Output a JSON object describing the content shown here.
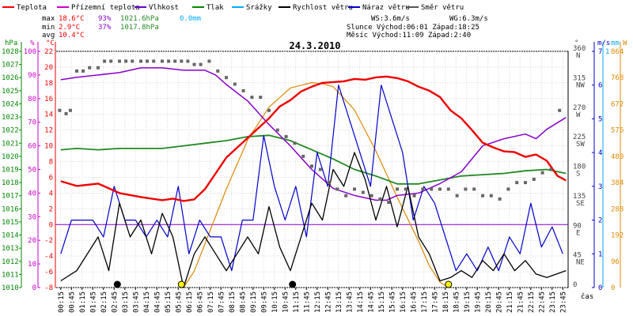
{
  "chart_data": {
    "type": "line",
    "title": "24.3.2010",
    "legend": [
      {
        "name": "Teplota",
        "color": "#ff0000"
      },
      {
        "name": "Přízemní teplota",
        "color": "#cc00cc"
      },
      {
        "name": "Vlhkost",
        "color": "#6600cc"
      },
      {
        "name": "Tlak",
        "color": "#008800"
      },
      {
        "name": "Srážky",
        "color": "#00aaff"
      },
      {
        "name": "Rychlost větru",
        "color": "#000000"
      },
      {
        "name": "Náraz větru",
        "color": "#0000cc"
      },
      {
        "name": "Směr větru",
        "color": "#555555"
      }
    ],
    "stats": {
      "max": {
        "label": "max",
        "temp": "18.6°C",
        "hum": "93%",
        "press": "1021.6hPa",
        "rain": "0.0mm"
      },
      "min": {
        "label": "min",
        "temp": "2.9°C",
        "hum": "37%",
        "press": "1017.8hPa"
      },
      "avg": {
        "label": "avg",
        "temp": "10.4°C"
      }
    },
    "info": {
      "ws": "WS:3.6m/s",
      "wg": "WG:6.3m/s",
      "sun": "Slunce Východ:06:01  Západ:18:25",
      "moon": "Měsíc  Východ:11:09  Západ:2:40"
    },
    "axes": {
      "hpa_title": "hPa",
      "pct_title": "%",
      "temp_title": "°C",
      "deg_title": "°",
      "ms_title": "m/s",
      "mm_title": "mm",
      "wm2_title": "W",
      "xlabel": "čas",
      "hpa_ticks": [
        "1028",
        "1027",
        "1026",
        "1025",
        "1024",
        "1023",
        "1022",
        "1021",
        "1020",
        "1019",
        "1018",
        "1017",
        "1016",
        "1015",
        "1014",
        "1013",
        "1012",
        "1011",
        "1010"
      ],
      "pct_ticks": [
        "100",
        "90",
        "80",
        "70",
        "60",
        "50",
        "40",
        "30",
        "20",
        "10",
        "0"
      ],
      "temp_ticks": [
        "22",
        "20",
        "18",
        "16",
        "14",
        "12",
        "10",
        "8",
        "6",
        "4",
        "2",
        "0",
        "-2",
        "-4",
        "-6",
        "-8"
      ],
      "dir_ticks": [
        {
          "deg": "360",
          "dir": "N"
        },
        {
          "deg": "315",
          "dir": "NW"
        },
        {
          "deg": "270",
          "dir": "W"
        },
        {
          "deg": "225",
          "dir": "SW"
        },
        {
          "deg": "180",
          "dir": "S"
        },
        {
          "deg": "135",
          "dir": "SE"
        },
        {
          "deg": "90",
          "dir": "E"
        },
        {
          "deg": "45",
          "dir": "NE"
        },
        {
          "deg": "0",
          "dir": ""
        }
      ],
      "ms_ticks": [
        "7",
        "6",
        "5",
        "4",
        "3",
        "2",
        "1",
        "0"
      ],
      "mm_top": "1",
      "wm2_ticks": [
        "864",
        "768",
        "672",
        "576",
        "480",
        "384",
        "288",
        "192",
        "96",
        "0"
      ],
      "x_ticks": [
        "00:15",
        "00:45",
        "01:15",
        "01:45",
        "02:15",
        "02:45",
        "03:15",
        "03:45",
        "04:15",
        "04:45",
        "05:15",
        "05:45",
        "06:15",
        "06:45",
        "07:15",
        "07:45",
        "08:15",
        "08:45",
        "09:15",
        "09:45",
        "10:15",
        "10:45",
        "11:15",
        "11:45",
        "12:15",
        "12:45",
        "13:15",
        "13:45",
        "14:15",
        "14:45",
        "15:15",
        "15:45",
        "16:15",
        "16:45",
        "17:15",
        "17:45",
        "18:15",
        "18:45",
        "19:15",
        "19:45",
        "20:15",
        "20:45",
        "21:15",
        "21:45",
        "22:15",
        "22:45",
        "23:15",
        "23:45"
      ]
    },
    "series": {
      "temperature": {
        "name": "Teplota",
        "unit": "°C",
        "x": [
          0.25,
          1,
          2,
          3,
          4,
          5,
          5.5,
          6,
          6.5,
          7,
          7.5,
          8,
          9,
          10,
          10.5,
          11,
          11.5,
          12,
          12.5,
          13,
          13.5,
          14,
          14.5,
          15,
          15.5,
          16,
          16.5,
          17,
          17.5,
          18,
          18.5,
          19,
          19.5,
          20,
          20.5,
          21,
          21.5,
          22,
          22.5,
          23,
          23.5,
          23.9
        ],
        "y": [
          5.5,
          4.9,
          5.2,
          4.0,
          3.5,
          3.1,
          3.3,
          3.0,
          3.2,
          4.5,
          6.5,
          8.5,
          11,
          13.5,
          15,
          15.8,
          16.9,
          17.5,
          18.0,
          18.1,
          18.2,
          18.5,
          18.4,
          18.7,
          18.8,
          18.6,
          18.2,
          17.5,
          17.0,
          16.2,
          14.5,
          13.5,
          12.0,
          10.4,
          9.8,
          9.3,
          9.2,
          8.6,
          8.9,
          8.1,
          6.2,
          5.6
        ]
      },
      "humidity": {
        "name": "Vlhkost",
        "unit": "%",
        "x": [
          0.25,
          1,
          2,
          3,
          4,
          5,
          6,
          7,
          7.5,
          8,
          9,
          10,
          11,
          12,
          13,
          14,
          15,
          15.5,
          16,
          17,
          18,
          19,
          20,
          21,
          22,
          22.5,
          23,
          23.9
        ],
        "y": [
          88,
          89,
          90,
          91,
          93,
          93,
          92,
          92,
          90,
          86,
          79,
          69,
          60,
          50,
          42,
          39,
          37,
          37,
          39,
          40,
          44,
          49,
          60,
          63,
          65,
          63,
          67,
          72
        ]
      },
      "pressure": {
        "name": "Tlak",
        "unit": "hPa",
        "x": [
          0.25,
          1,
          2,
          3,
          4,
          5,
          6,
          7,
          8,
          9,
          10,
          11,
          12,
          13,
          14,
          15,
          16,
          17,
          18,
          19,
          20,
          21,
          22,
          23,
          23.9
        ],
        "y": [
          1020.5,
          1020.6,
          1020.5,
          1020.6,
          1020.6,
          1020.6,
          1020.8,
          1021.0,
          1021.2,
          1021.5,
          1021.6,
          1021.2,
          1020.5,
          1019.8,
          1019.0,
          1018.5,
          1017.9,
          1017.9,
          1018.2,
          1018.5,
          1018.6,
          1018.7,
          1018.9,
          1019.0,
          1018.7
        ]
      },
      "wind_speed": {
        "name": "Rychlost větru",
        "unit": "m/s",
        "x": [
          0.25,
          1,
          2,
          2.5,
          3,
          3.5,
          4,
          4.5,
          5,
          5.5,
          6,
          6.5,
          7,
          7.5,
          8,
          8.5,
          9,
          9.5,
          10,
          10.5,
          11,
          11.5,
          12,
          12.5,
          13,
          13.5,
          14,
          14.5,
          15,
          15.5,
          16,
          16.5,
          17,
          17.5,
          18,
          18.5,
          19,
          19.5,
          20,
          20.5,
          21,
          21.5,
          22,
          22.5,
          23,
          23.9
        ],
        "y": [
          0.2,
          0.5,
          1.5,
          0.5,
          2.5,
          1.5,
          2,
          1,
          2.2,
          1.5,
          0,
          1,
          1.5,
          1,
          0.5,
          1,
          1.5,
          1,
          2.4,
          1.2,
          0.5,
          1.5,
          2.5,
          2,
          3.5,
          3,
          4,
          3.2,
          2,
          3,
          1.8,
          3,
          1.5,
          1,
          0.2,
          0.3,
          0.5,
          0.3,
          0.8,
          0.5,
          1,
          0.5,
          0.8,
          0.4,
          0.3,
          0.5
        ]
      },
      "wind_gust": {
        "name": "Náraz větru",
        "unit": "m/s",
        "x": [
          0.25,
          0.75,
          1.25,
          1.75,
          2.25,
          2.75,
          3.25,
          3.75,
          4.25,
          4.75,
          5.25,
          5.75,
          6.25,
          6.75,
          7.25,
          7.75,
          8.25,
          8.75,
          9.25,
          9.75,
          10.25,
          10.75,
          11.25,
          11.75,
          12.25,
          12.75,
          13.25,
          13.75,
          14.25,
          14.75,
          15.25,
          15.75,
          16.25,
          16.75,
          17.25,
          17.75,
          18.25,
          18.75,
          19.25,
          19.75,
          20.25,
          20.75,
          21.25,
          21.75,
          22.25,
          22.75,
          23.25,
          23.75
        ],
        "y": [
          1,
          2,
          2,
          2,
          1.5,
          3,
          2,
          2,
          1.5,
          2,
          1.5,
          3,
          1,
          2,
          1.5,
          1.5,
          0.5,
          2,
          2,
          4.5,
          3,
          2,
          3,
          1.5,
          4,
          3,
          6,
          5,
          4,
          3,
          6,
          5,
          4,
          2,
          3,
          2.5,
          1.5,
          0.5,
          1,
          0.5,
          1.2,
          0.5,
          1.5,
          1,
          2.5,
          1.2,
          1.8,
          1
        ]
      },
      "wind_dir": {
        "name": "Směr větru",
        "unit": "°",
        "x": [
          0.2,
          0.5,
          0.7,
          1.0,
          1.3,
          1.6,
          2.0,
          2.3,
          2.6,
          3.0,
          3.3,
          3.6,
          4.0,
          4.3,
          4.6,
          5.0,
          5.3,
          5.6,
          5.9,
          6.2,
          6.5,
          6.8,
          7.2,
          7.6,
          8.0,
          8.4,
          8.8,
          9.2,
          9.6,
          10.0,
          10.4,
          10.8,
          11.2,
          11.6,
          12.0,
          12.4,
          12.8,
          13.2,
          13.6,
          14.0,
          14.4,
          14.8,
          15.2,
          15.6,
          16.0,
          16.4,
          16.8,
          17.2,
          17.6,
          18.0,
          18.4,
          18.8,
          19.2,
          19.6,
          20.0,
          20.4,
          20.8,
          21.2,
          21.6,
          22.0,
          22.4,
          22.8,
          23.2,
          23.6
        ],
        "y": [
          270,
          265,
          270,
          330,
          330,
          335,
          335,
          345,
          345,
          345,
          345,
          345,
          345,
          345,
          345,
          345,
          345,
          345,
          345,
          345,
          340,
          340,
          345,
          330,
          320,
          310,
          300,
          290,
          290,
          270,
          240,
          230,
          220,
          200,
          185,
          180,
          160,
          150,
          140,
          150,
          145,
          140,
          135,
          130,
          150,
          150,
          140,
          150,
          150,
          150,
          150,
          140,
          150,
          150,
          140,
          140,
          135,
          150,
          160,
          160,
          165,
          175,
          180,
          270
        ]
      },
      "solar": {
        "name": "W/m²",
        "unit": "W/m²",
        "x": [
          6.0,
          6.5,
          7,
          8,
          9,
          10,
          11,
          12,
          12.5,
          13,
          14,
          15,
          16,
          17,
          17.5,
          18,
          18.4
        ],
        "y": [
          0,
          60,
          160,
          360,
          540,
          660,
          730,
          750,
          745,
          735,
          650,
          500,
          330,
          170,
          80,
          20,
          0
        ]
      }
    },
    "markers": [
      {
        "time": 2.9,
        "color": "#000000",
        "kind": "moon-set"
      },
      {
        "time": 5.9,
        "color": "#ffff00",
        "kind": "sunrise"
      },
      {
        "time": 11.1,
        "color": "#000000",
        "kind": "moon-rise"
      },
      {
        "time": 18.4,
        "color": "#ffff00",
        "kind": "sunset"
      }
    ],
    "colors": {
      "temperature": "#ee0000",
      "humidity": "#8800cc",
      "pressure": "#228822",
      "wind_speed": "#000000",
      "wind_gust": "#0000cc",
      "wind_dir": "#666666",
      "solar": "#dd8800",
      "hpa_axis": "#008800",
      "pct_axis": "#cc00cc",
      "temp_axis": "#ee0000",
      "ms_axis": "#0000cc",
      "mm_axis": "#00aaff",
      "wm2_axis": "#dd8800",
      "zero_line": "#8800cc"
    }
  }
}
